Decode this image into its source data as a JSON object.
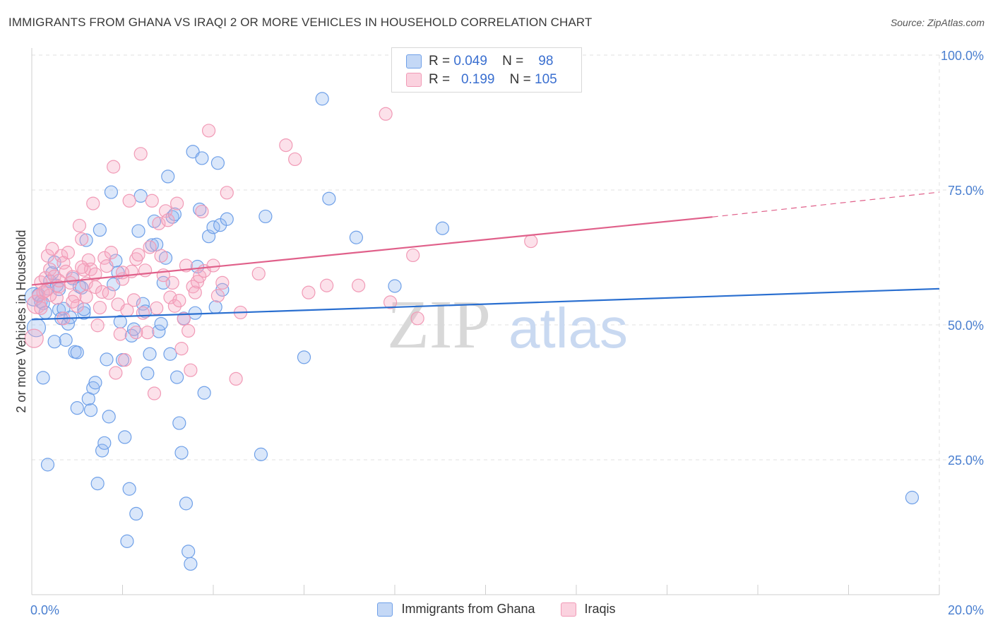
{
  "title": "IMMIGRANTS FROM GHANA VS IRAQI 2 OR MORE VEHICLES IN HOUSEHOLD CORRELATION CHART",
  "source": "Source: ZipAtlas.com",
  "watermark": {
    "zip": "ZIP",
    "atlas": "atlas"
  },
  "legend_top": [
    {
      "r_label": "R =",
      "r_value": "0.049",
      "n_label": "N =",
      "n_value": "98",
      "color": "#6fa0e8"
    },
    {
      "r_label": "R =",
      "r_value": "0.199",
      "n_label": "N =",
      "n_value": "105",
      "color": "#f19ab6"
    }
  ],
  "chart_data": {
    "type": "scatter",
    "title": "IMMIGRANTS FROM GHANA VS IRAQI 2 OR MORE VEHICLES IN HOUSEHOLD CORRELATION CHART",
    "xlabel": "",
    "ylabel": "2 or more Vehicles in Household",
    "xlim": [
      0,
      20
    ],
    "ylim": [
      0,
      100
    ],
    "x_ticks": [
      "0.0%",
      "20.0%"
    ],
    "y_ticks": [
      "25.0%",
      "50.0%",
      "75.0%",
      "100.0%"
    ],
    "y_tick_values": [
      25,
      50,
      75,
      100
    ],
    "grid": true,
    "legend_position": "bottom",
    "series": [
      {
        "name": "Immigrants from Ghana",
        "color": "#6fa0e8",
        "line_color": "#2a6fd0",
        "trend": {
          "x0": 0,
          "y0": 51.0,
          "x1": 20,
          "y1": 56.7
        },
        "points": [
          [
            0.05,
            55.2
          ],
          [
            0.1,
            49.5
          ],
          [
            0.15,
            55.6
          ],
          [
            0.2,
            54.3
          ],
          [
            0.25,
            54.0
          ],
          [
            0.3,
            52.3
          ],
          [
            0.35,
            56.7
          ],
          [
            0.4,
            58.1
          ],
          [
            0.45,
            59.6
          ],
          [
            0.5,
            61.6
          ],
          [
            0.55,
            57.3
          ],
          [
            0.6,
            52.8
          ],
          [
            0.65,
            51.2
          ],
          [
            0.7,
            53.0
          ],
          [
            0.75,
            47.2
          ],
          [
            0.8,
            50.2
          ],
          [
            0.85,
            51.4
          ],
          [
            0.9,
            58.6
          ],
          [
            0.95,
            45.0
          ],
          [
            1.0,
            44.9
          ],
          [
            1.05,
            57.1
          ],
          [
            1.1,
            56.9
          ],
          [
            1.15,
            52.2
          ],
          [
            1.2,
            65.7
          ],
          [
            1.25,
            36.3
          ],
          [
            1.3,
            34.2
          ],
          [
            1.35,
            38.3
          ],
          [
            1.4,
            39.3
          ],
          [
            1.45,
            20.6
          ],
          [
            1.5,
            67.6
          ],
          [
            1.55,
            26.7
          ],
          [
            1.6,
            28.1
          ],
          [
            1.65,
            43.6
          ],
          [
            1.7,
            33.0
          ],
          [
            1.75,
            74.6
          ],
          [
            1.8,
            57.5
          ],
          [
            1.85,
            61.9
          ],
          [
            1.9,
            59.7
          ],
          [
            1.95,
            50.6
          ],
          [
            2.0,
            43.5
          ],
          [
            2.05,
            29.2
          ],
          [
            2.1,
            9.9
          ],
          [
            2.15,
            19.6
          ],
          [
            2.2,
            48.0
          ],
          [
            2.25,
            49.2
          ],
          [
            2.3,
            15.0
          ],
          [
            2.35,
            67.4
          ],
          [
            2.4,
            73.9
          ],
          [
            2.45,
            53.9
          ],
          [
            2.5,
            52.5
          ],
          [
            2.55,
            41.0
          ],
          [
            2.6,
            44.6
          ],
          [
            2.65,
            64.8
          ],
          [
            2.7,
            69.2
          ],
          [
            2.75,
            64.9
          ],
          [
            2.8,
            48.8
          ],
          [
            2.85,
            50.2
          ],
          [
            2.9,
            57.8
          ],
          [
            2.95,
            62.4
          ],
          [
            3.0,
            77.5
          ],
          [
            3.05,
            44.6
          ],
          [
            3.1,
            70.0
          ],
          [
            3.15,
            70.5
          ],
          [
            3.2,
            40.3
          ],
          [
            3.25,
            31.8
          ],
          [
            3.3,
            26.3
          ],
          [
            3.35,
            51.2
          ],
          [
            3.4,
            16.9
          ],
          [
            3.45,
            8.0
          ],
          [
            3.5,
            5.7
          ],
          [
            3.55,
            82.1
          ],
          [
            3.6,
            52.2
          ],
          [
            3.65,
            60.8
          ],
          [
            3.7,
            71.4
          ],
          [
            3.75,
            80.9
          ],
          [
            3.8,
            37.4
          ],
          [
            3.9,
            66.4
          ],
          [
            4.0,
            68.1
          ],
          [
            4.05,
            53.3
          ],
          [
            4.1,
            80.0
          ],
          [
            4.15,
            68.5
          ],
          [
            4.2,
            56.5
          ],
          [
            4.3,
            69.6
          ],
          [
            5.05,
            26.0
          ],
          [
            5.15,
            70.1
          ],
          [
            6.0,
            44.0
          ],
          [
            6.4,
            91.9
          ],
          [
            6.55,
            73.4
          ],
          [
            7.15,
            66.2
          ],
          [
            8.0,
            57.2
          ],
          [
            9.05,
            67.9
          ],
          [
            0.35,
            24.1
          ],
          [
            0.25,
            40.2
          ],
          [
            0.5,
            46.9
          ],
          [
            1.0,
            34.6
          ],
          [
            1.15,
            52.9
          ],
          [
            0.6,
            56.6
          ],
          [
            19.4,
            18.0
          ]
        ]
      },
      {
        "name": "Iraqis",
        "color": "#f19ab6",
        "line_color": "#e0608a",
        "trend": {
          "x0": 0,
          "y0": 57.4,
          "x1": 15,
          "y1": 70.0,
          "dash_x1": 20,
          "dash_y1": 74.6
        },
        "points": [
          [
            0.05,
            47.5
          ],
          [
            0.1,
            53.8
          ],
          [
            0.15,
            55.4
          ],
          [
            0.2,
            57.9
          ],
          [
            0.25,
            56.0
          ],
          [
            0.3,
            58.7
          ],
          [
            0.35,
            62.8
          ],
          [
            0.4,
            60.3
          ],
          [
            0.45,
            64.1
          ],
          [
            0.5,
            59.0
          ],
          [
            0.55,
            55.0
          ],
          [
            0.6,
            57.1
          ],
          [
            0.65,
            62.8
          ],
          [
            0.7,
            61.5
          ],
          [
            0.75,
            59.9
          ],
          [
            0.8,
            63.4
          ],
          [
            0.85,
            57.8
          ],
          [
            0.9,
            58.9
          ],
          [
            0.95,
            55.3
          ],
          [
            1.0,
            53.5
          ],
          [
            1.05,
            68.4
          ],
          [
            1.1,
            65.9
          ],
          [
            1.15,
            60.2
          ],
          [
            1.2,
            57.7
          ],
          [
            1.25,
            62.0
          ],
          [
            1.3,
            60.3
          ],
          [
            1.35,
            72.5
          ],
          [
            1.4,
            57.0
          ],
          [
            1.45,
            49.9
          ],
          [
            1.5,
            53.2
          ],
          [
            1.55,
            56.1
          ],
          [
            1.6,
            62.4
          ],
          [
            1.65,
            60.9
          ],
          [
            1.7,
            55.9
          ],
          [
            1.75,
            63.4
          ],
          [
            1.8,
            79.3
          ],
          [
            1.85,
            41.1
          ],
          [
            1.9,
            53.8
          ],
          [
            1.95,
            48.3
          ],
          [
            2.0,
            58.5
          ],
          [
            2.05,
            43.5
          ],
          [
            2.1,
            52.7
          ],
          [
            2.15,
            73.0
          ],
          [
            2.2,
            59.9
          ],
          [
            2.25,
            54.6
          ],
          [
            2.3,
            62.2
          ],
          [
            2.35,
            63.0
          ],
          [
            2.4,
            81.7
          ],
          [
            2.45,
            52.2
          ],
          [
            2.5,
            60.1
          ],
          [
            2.55,
            48.6
          ],
          [
            2.6,
            64.4
          ],
          [
            2.65,
            73.0
          ],
          [
            2.7,
            37.3
          ],
          [
            2.75,
            53.1
          ],
          [
            2.8,
            68.8
          ],
          [
            2.85,
            62.8
          ],
          [
            2.9,
            59.2
          ],
          [
            2.95,
            71.1
          ],
          [
            3.0,
            69.4
          ],
          [
            3.05,
            55.1
          ],
          [
            3.1,
            57.8
          ],
          [
            3.15,
            53.5
          ],
          [
            3.2,
            72.5
          ],
          [
            3.25,
            54.5
          ],
          [
            3.3,
            45.6
          ],
          [
            3.35,
            51.1
          ],
          [
            3.4,
            61.0
          ],
          [
            3.45,
            48.9
          ],
          [
            3.5,
            41.6
          ],
          [
            3.55,
            57.1
          ],
          [
            3.6,
            56.0
          ],
          [
            3.65,
            58.0
          ],
          [
            3.7,
            59.0
          ],
          [
            3.75,
            71.0
          ],
          [
            3.8,
            60.0
          ],
          [
            3.9,
            86.0
          ],
          [
            4.0,
            61.0
          ],
          [
            4.1,
            55.4
          ],
          [
            4.2,
            57.8
          ],
          [
            4.3,
            74.5
          ],
          [
            4.5,
            40.0
          ],
          [
            4.6,
            52.3
          ],
          [
            5.0,
            59.5
          ],
          [
            5.6,
            83.3
          ],
          [
            5.8,
            80.7
          ],
          [
            6.1,
            56.0
          ],
          [
            6.5,
            57.3
          ],
          [
            7.2,
            57.3
          ],
          [
            7.8,
            89.1
          ],
          [
            7.9,
            54.2
          ],
          [
            8.4,
            62.9
          ],
          [
            8.5,
            51.2
          ],
          [
            11.0,
            65.5
          ],
          [
            0.2,
            53.1
          ],
          [
            0.4,
            55.5
          ],
          [
            0.7,
            51.2
          ],
          [
            1.2,
            55.2
          ],
          [
            0.3,
            56.3
          ],
          [
            0.9,
            54.3
          ],
          [
            1.4,
            59.4
          ],
          [
            2.0,
            59.7
          ],
          [
            0.6,
            58.2
          ],
          [
            1.1,
            60.7
          ],
          [
            2.3,
            48.6
          ]
        ]
      }
    ]
  }
}
